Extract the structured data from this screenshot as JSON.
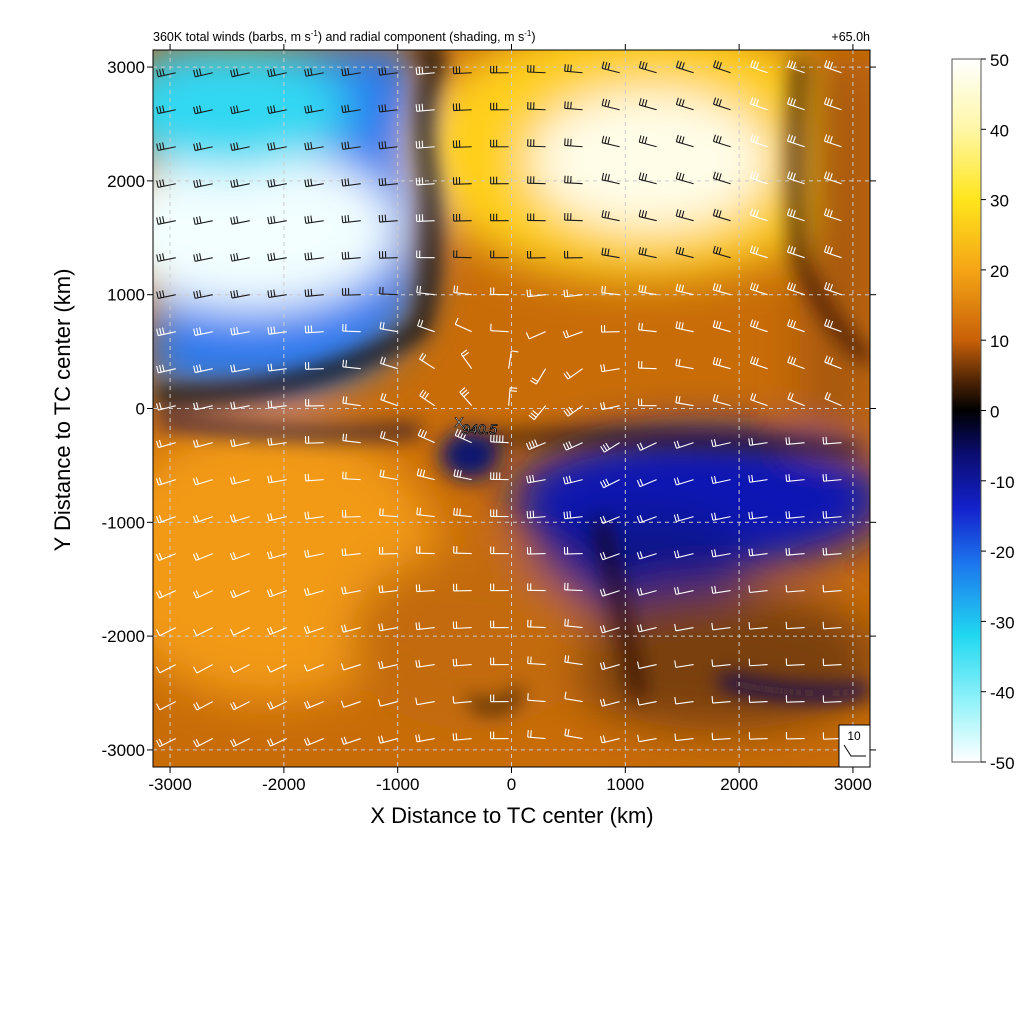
{
  "title": {
    "main": "360K total winds (barbs, m s",
    "sup1": "-1",
    "mid": ") and radial component (shading, m s",
    "sup2": "-1",
    "end": ")"
  },
  "time_label": "+65.0h",
  "center_label": "940.5",
  "reference_vector_label": "10",
  "colors": {
    "neg_light": "#e8fbff",
    "cyan": "#22e6f4",
    "blue_mid": "#1f74ee",
    "blue_deep": "#0a0f9c",
    "zero": "#000000",
    "brown": "#5a2c05",
    "orange": "#f08a10",
    "yellow": "#ffe51c",
    "pos_light": "#ffffff",
    "grid": "#c8c8c8"
  },
  "chart_data": {
    "type": "heatmap",
    "xlabel": "X Distance to TC center (km)",
    "ylabel": "Y Distance to TC center (km)",
    "xlim": [
      -3150,
      3150
    ],
    "ylim": [
      -3150,
      3150
    ],
    "x_ticks": [
      -3000,
      -2000,
      -1000,
      0,
      1000,
      2000,
      3000
    ],
    "y_ticks": [
      -3000,
      -2000,
      -1000,
      0,
      1000,
      2000,
      3000
    ],
    "x_tick_labels": [
      "-3000",
      "-2000",
      "-1000",
      "0",
      "1000",
      "2000",
      "3000"
    ],
    "y_tick_labels": [
      "-3000",
      "-2000",
      "-1000",
      "0",
      "1000",
      "2000",
      "3000"
    ],
    "grid": true,
    "colorbar": {
      "min": -50,
      "max": 50,
      "ticks": [
        50,
        40,
        30,
        20,
        10,
        0,
        -10,
        -20,
        -30,
        -40,
        -50
      ],
      "tick_labels": [
        "50",
        "40",
        "30",
        "20",
        "10",
        "0",
        "-10",
        "-20",
        "-30",
        "-40",
        "-50"
      ]
    },
    "radial_component_features": [
      {
        "region": "northwest",
        "x": -2000,
        "y": 1500,
        "value": -45
      },
      {
        "region": "northeast",
        "x": 1300,
        "y": 2100,
        "value": 48
      },
      {
        "region": "southwest",
        "x": -2200,
        "y": -1400,
        "value": 22
      },
      {
        "region": "southeast",
        "x": 1500,
        "y": -700,
        "value": -12
      },
      {
        "region": "far-east strip",
        "x": 2700,
        "y": 1000,
        "value": 8
      },
      {
        "region": "south-central",
        "x": 1000,
        "y": -2500,
        "value": 10
      }
    ],
    "tc_center": {
      "x": 0,
      "y": 0,
      "pressure_label": "940.5"
    },
    "reference_barb_speed": 10
  }
}
